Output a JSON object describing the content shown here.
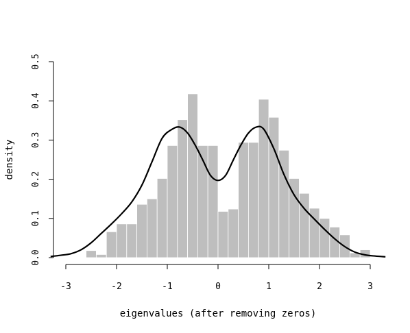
{
  "chart_data": {
    "type": "bar",
    "subtype": "histogram-with-density",
    "title": "",
    "xlabel": "eigenvalues (after removing zeros)",
    "ylabel": "density",
    "xlim": [
      -3.3,
      3.3
    ],
    "ylim": [
      0,
      0.5
    ],
    "x_ticks": [
      -3,
      -2,
      -1,
      0,
      1,
      2,
      3
    ],
    "x_tick_labels": [
      "-3",
      "-2",
      "-1",
      "0",
      "1",
      "2",
      "3"
    ],
    "y_ticks": [
      0.0,
      0.1,
      0.2,
      0.3,
      0.4,
      0.5
    ],
    "y_tick_labels": [
      "0.0",
      "0.1",
      "0.2",
      "0.3",
      "0.4",
      "0.5"
    ],
    "grid": false,
    "colors": {
      "bars": "#bebebe",
      "bar_border": "#ffffff",
      "curve": "#000000"
    },
    "bins": {
      "start": -3.0,
      "width": 0.2,
      "values": [
        0.0,
        0.0,
        0.018,
        0.008,
        0.066,
        0.086,
        0.086,
        0.136,
        0.15,
        0.202,
        0.286,
        0.352,
        0.418,
        0.286,
        0.286,
        0.118,
        0.124,
        0.294,
        0.294,
        0.404,
        0.358,
        0.274,
        0.202,
        0.164,
        0.126,
        0.1,
        0.078,
        0.058,
        0.012,
        0.02
      ]
    },
    "density": {
      "x": [
        -3.3,
        -3.1,
        -2.9,
        -2.7,
        -2.5,
        -2.3,
        -2.1,
        -1.9,
        -1.7,
        -1.5,
        -1.3,
        -1.1,
        -0.9,
        -0.75,
        -0.6,
        -0.45,
        -0.3,
        -0.15,
        0.0,
        0.15,
        0.3,
        0.45,
        0.6,
        0.75,
        0.9,
        1.1,
        1.3,
        1.5,
        1.7,
        1.9,
        2.1,
        2.3,
        2.5,
        2.7,
        2.9,
        3.1,
        3.3
      ],
      "y": [
        0.003,
        0.006,
        0.01,
        0.02,
        0.038,
        0.062,
        0.086,
        0.112,
        0.142,
        0.185,
        0.245,
        0.305,
        0.328,
        0.333,
        0.318,
        0.287,
        0.249,
        0.21,
        0.197,
        0.21,
        0.249,
        0.287,
        0.318,
        0.333,
        0.328,
        0.278,
        0.212,
        0.16,
        0.125,
        0.098,
        0.072,
        0.048,
        0.028,
        0.014,
        0.007,
        0.004,
        0.002
      ]
    }
  }
}
